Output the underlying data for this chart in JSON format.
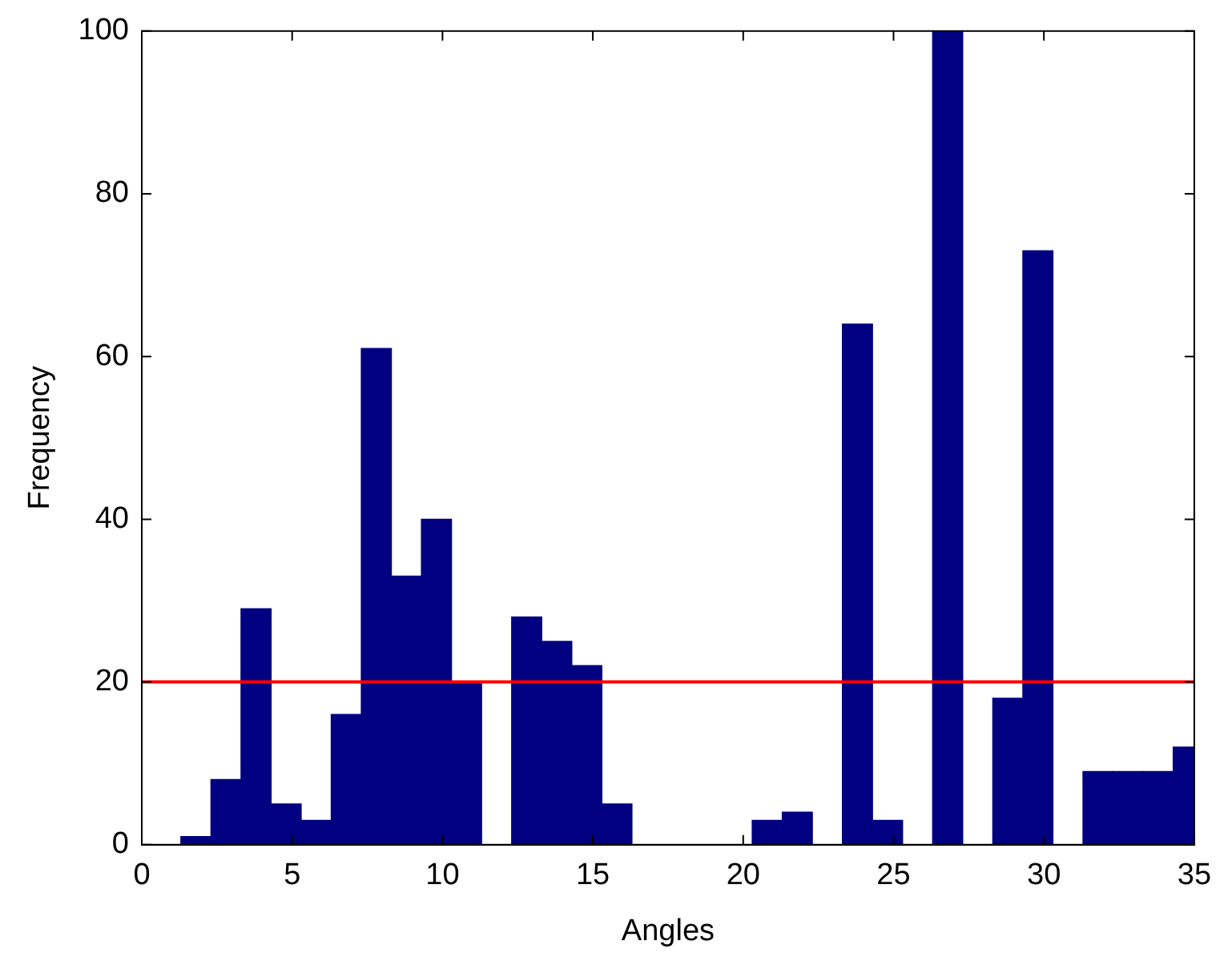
{
  "chart_data": {
    "type": "histogram",
    "xlabel": "Angles",
    "ylabel": "Frequency",
    "bins": [
      1.3,
      2.3,
      3.3,
      4.3,
      5.3,
      6.3,
      7.3,
      8.3,
      9.3,
      10.3,
      11.3,
      12.3,
      13.3,
      14.3,
      15.3,
      16.3,
      17.3,
      18.3,
      19.3,
      20.3,
      21.3,
      22.3,
      23.3,
      24.3,
      25.3,
      26.3,
      27.3,
      28.3,
      29.3,
      30.3,
      31.3,
      32.3,
      33.3,
      34.3,
      35
    ],
    "values": [
      1,
      8,
      29,
      5,
      3,
      16,
      61,
      33,
      40,
      20,
      0,
      28,
      25,
      22,
      5,
      0,
      0,
      0,
      0,
      3,
      4,
      0,
      64,
      3,
      0,
      100,
      0,
      18,
      73,
      0,
      9,
      9,
      9,
      12
    ],
    "color": "#000080",
    "xlim": [
      0,
      35
    ],
    "xticks": [
      0,
      5,
      10,
      15,
      20,
      25,
      30,
      35
    ],
    "ylim": [
      0,
      100
    ],
    "yticks": [
      0,
      20,
      40,
      60,
      80,
      100
    ],
    "grid": false,
    "legend": false,
    "ref_lines": [
      {
        "axis": "y",
        "value": 20,
        "color": "#ff0000"
      }
    ]
  }
}
